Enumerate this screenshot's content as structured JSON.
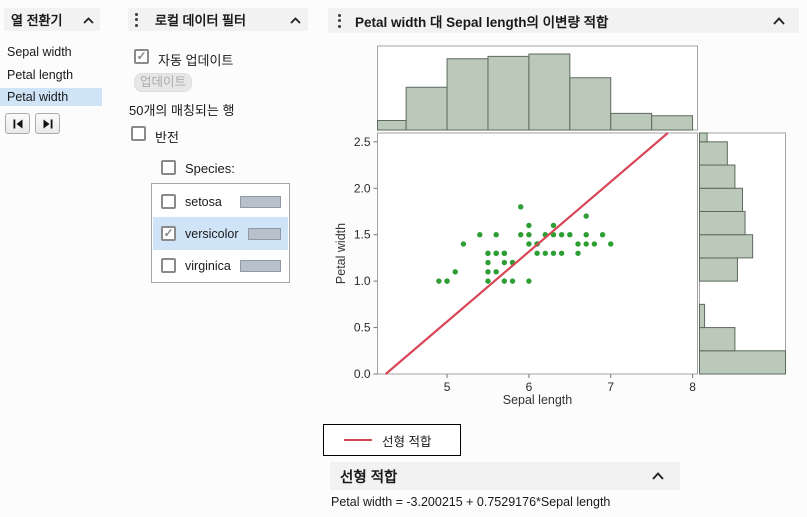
{
  "column_switcher": {
    "title": "열 전환기",
    "items": [
      {
        "label": "Sepal width",
        "selected": false
      },
      {
        "label": "Petal length",
        "selected": false
      },
      {
        "label": "Petal width",
        "selected": true
      }
    ]
  },
  "data_filter": {
    "title": "로컬 데이터 필터",
    "auto_update_label": "자동 업데이트",
    "auto_update_checked": true,
    "update_button_label": "업데이트",
    "update_button_enabled": false,
    "matching_rows_text": "50개의 매칭되는 행",
    "invert_label": "반전",
    "invert_checked": false,
    "species_label": "Species:",
    "species_checked": false,
    "levels": [
      {
        "label": "setosa",
        "checked": false,
        "selected": false
      },
      {
        "label": "versicolor",
        "checked": true,
        "selected": true
      },
      {
        "label": "virginica",
        "checked": false,
        "selected": false
      }
    ]
  },
  "bivariate": {
    "title": "Petal width 대 Sepal length의 이변량 적합",
    "legend_label": "선형 적합",
    "fit_section_title": "선형 적합",
    "equation": "Petal width = -3.200215 + 0.7529176*Sepal length"
  },
  "icons": {
    "panel_menu": "vertical-dots",
    "collapse": "chevron-up",
    "step_back": "previous-column",
    "step_forward": "next-column",
    "checkbox_check": "✓"
  },
  "colors": {
    "selection_highlight": "#cfe4f7",
    "header_strip": "#f2f2f2",
    "filter_count_bar": "#b7c0cb",
    "disabled_button_bg": "#e7e7e7"
  },
  "chart_data": {
    "type": "scatter",
    "title": "Petal width 대 Sepal length의 이변량 적합",
    "xlabel": "Sepal length",
    "ylabel": "Petal width",
    "xlim": [
      4.15,
      8.06
    ],
    "ylim": [
      0,
      2.595
    ],
    "xticks": [
      5,
      6,
      7,
      8
    ],
    "yticks": [
      0.0,
      0.5,
      1.0,
      1.5,
      2.0,
      2.5
    ],
    "grid": false,
    "legend_position": "below-left",
    "points": [
      [
        7.0,
        1.4
      ],
      [
        6.4,
        1.5
      ],
      [
        6.9,
        1.5
      ],
      [
        5.5,
        1.3
      ],
      [
        6.5,
        1.5
      ],
      [
        5.7,
        1.3
      ],
      [
        6.3,
        1.6
      ],
      [
        4.9,
        1.0
      ],
      [
        6.6,
        1.3
      ],
      [
        5.2,
        1.4
      ],
      [
        5.0,
        1.0
      ],
      [
        5.9,
        1.5
      ],
      [
        6.0,
        1.0
      ],
      [
        6.1,
        1.4
      ],
      [
        5.6,
        1.3
      ],
      [
        6.7,
        1.4
      ],
      [
        5.6,
        1.5
      ],
      [
        5.8,
        1.0
      ],
      [
        6.2,
        1.5
      ],
      [
        5.6,
        1.1
      ],
      [
        5.9,
        1.8
      ],
      [
        6.1,
        1.3
      ],
      [
        6.3,
        1.5
      ],
      [
        6.1,
        1.4
      ],
      [
        6.4,
        1.3
      ],
      [
        6.6,
        1.4
      ],
      [
        6.8,
        1.4
      ],
      [
        6.7,
        1.7
      ],
      [
        6.0,
        1.5
      ],
      [
        5.7,
        1.0
      ],
      [
        5.5,
        1.1
      ],
      [
        5.5,
        1.0
      ],
      [
        5.8,
        1.2
      ],
      [
        6.0,
        1.6
      ],
      [
        5.4,
        1.5
      ],
      [
        6.0,
        1.4
      ],
      [
        6.7,
        1.5
      ],
      [
        6.3,
        1.3
      ],
      [
        5.6,
        1.3
      ],
      [
        5.5,
        1.3
      ],
      [
        5.5,
        1.2
      ],
      [
        6.1,
        1.4
      ],
      [
        5.8,
        1.2
      ],
      [
        5.0,
        1.0
      ],
      [
        5.6,
        1.3
      ],
      [
        5.7,
        1.2
      ],
      [
        5.7,
        1.3
      ],
      [
        6.2,
        1.3
      ],
      [
        5.1,
        1.1
      ],
      [
        5.7,
        1.3
      ]
    ],
    "fit_line": {
      "label": "선형 적합",
      "intercept": -3.200215,
      "slope": 0.7529176
    },
    "top_histogram": {
      "axis": "x",
      "bin_start": 4.0,
      "bin_width": 0.5,
      "counts": [
        4,
        18,
        30,
        31,
        32,
        22,
        7,
        6
      ]
    },
    "right_histogram": {
      "axis": "y",
      "bin_start": 0.0,
      "bin_width": 0.25,
      "counts": [
        34,
        14,
        2,
        0,
        15,
        21,
        18,
        17,
        14,
        11,
        3
      ]
    },
    "colors": {
      "point": "#2d9e34",
      "fit_line": "#d84658",
      "histogram_fill": "#bac9ba",
      "histogram_border": "#5f6a5f",
      "box_border": "#a3a3a3"
    }
  }
}
